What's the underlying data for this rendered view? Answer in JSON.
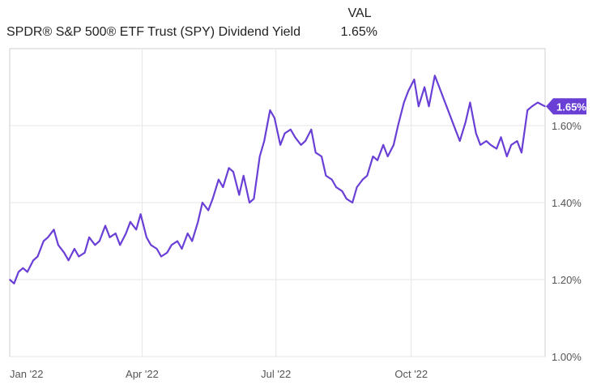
{
  "legend": {
    "val_header": "VAL",
    "series_name": "SPDR® S&P 500® ETF Trust (SPY) Dividend Yield",
    "series_value": "1.65%"
  },
  "colors": {
    "line": "#6a3fd6",
    "grid": "#e6e6e6",
    "frame": "#cfcfcf",
    "badge": "#6a3fd6"
  },
  "chart_data": {
    "type": "line",
    "title": "",
    "xlabel": "",
    "ylabel": "",
    "ylim": [
      1.0,
      1.8
    ],
    "y_ticks": [
      1.0,
      1.2,
      1.4,
      1.6
    ],
    "y_tick_labels": [
      "1.00%",
      "1.20%",
      "1.40%",
      "1.60%"
    ],
    "x_ticks": [
      "2022-01-01",
      "2022-04-01",
      "2022-07-01",
      "2022-10-01"
    ],
    "x_tick_labels": [
      "Jan '22",
      "Apr '22",
      "Jul '22",
      "Oct '22"
    ],
    "x_range": [
      "2022-01-01",
      "2022-12-31"
    ],
    "grid": true,
    "last_value_label": "1.65%",
    "series": [
      {
        "name": "SPDR® S&P 500® ETF Trust (SPY) Dividend Yield",
        "x": [
          "2022-01-01",
          "2022-01-04",
          "2022-01-07",
          "2022-01-10",
          "2022-01-13",
          "2022-01-17",
          "2022-01-20",
          "2022-01-24",
          "2022-01-27",
          "2022-01-31",
          "2022-02-03",
          "2022-02-07",
          "2022-02-10",
          "2022-02-14",
          "2022-02-17",
          "2022-02-21",
          "2022-02-24",
          "2022-02-28",
          "2022-03-03",
          "2022-03-07",
          "2022-03-10",
          "2022-03-14",
          "2022-03-17",
          "2022-03-21",
          "2022-03-24",
          "2022-03-28",
          "2022-03-31",
          "2022-04-04",
          "2022-04-07",
          "2022-04-11",
          "2022-04-14",
          "2022-04-18",
          "2022-04-21",
          "2022-04-25",
          "2022-04-28",
          "2022-05-02",
          "2022-05-05",
          "2022-05-09",
          "2022-05-12",
          "2022-05-16",
          "2022-05-19",
          "2022-05-23",
          "2022-05-26",
          "2022-05-30",
          "2022-06-02",
          "2022-06-06",
          "2022-06-09",
          "2022-06-13",
          "2022-06-16",
          "2022-06-20",
          "2022-06-23",
          "2022-06-27",
          "2022-06-30",
          "2022-07-04",
          "2022-07-07",
          "2022-07-11",
          "2022-07-14",
          "2022-07-18",
          "2022-07-21",
          "2022-07-25",
          "2022-07-28",
          "2022-08-01",
          "2022-08-04",
          "2022-08-08",
          "2022-08-11",
          "2022-08-15",
          "2022-08-18",
          "2022-08-22",
          "2022-08-25",
          "2022-08-29",
          "2022-09-01",
          "2022-09-05",
          "2022-09-08",
          "2022-09-12",
          "2022-09-15",
          "2022-09-19",
          "2022-09-22",
          "2022-09-26",
          "2022-09-29",
          "2022-10-03",
          "2022-10-06",
          "2022-10-10",
          "2022-10-13",
          "2022-10-17",
          "2022-10-20",
          "2022-10-24",
          "2022-10-27",
          "2022-10-31",
          "2022-11-03",
          "2022-11-07",
          "2022-11-10",
          "2022-11-14",
          "2022-11-17",
          "2022-11-21",
          "2022-11-24",
          "2022-11-28",
          "2022-12-01",
          "2022-12-05",
          "2022-12-08",
          "2022-12-12",
          "2022-12-15",
          "2022-12-19",
          "2022-12-22",
          "2022-12-26",
          "2022-12-31"
        ],
        "values": [
          1.2,
          1.19,
          1.22,
          1.23,
          1.22,
          1.25,
          1.26,
          1.3,
          1.31,
          1.33,
          1.29,
          1.27,
          1.25,
          1.28,
          1.26,
          1.27,
          1.31,
          1.29,
          1.3,
          1.34,
          1.31,
          1.32,
          1.29,
          1.32,
          1.35,
          1.33,
          1.37,
          1.31,
          1.29,
          1.28,
          1.26,
          1.27,
          1.29,
          1.3,
          1.28,
          1.32,
          1.3,
          1.35,
          1.4,
          1.38,
          1.41,
          1.46,
          1.44,
          1.49,
          1.48,
          1.42,
          1.47,
          1.4,
          1.41,
          1.52,
          1.56,
          1.64,
          1.62,
          1.55,
          1.58,
          1.59,
          1.57,
          1.55,
          1.56,
          1.59,
          1.53,
          1.52,
          1.47,
          1.46,
          1.44,
          1.43,
          1.41,
          1.4,
          1.44,
          1.46,
          1.47,
          1.52,
          1.51,
          1.55,
          1.52,
          1.55,
          1.6,
          1.66,
          1.69,
          1.72,
          1.65,
          1.7,
          1.65,
          1.73,
          1.7,
          1.66,
          1.63,
          1.59,
          1.56,
          1.61,
          1.66,
          1.58,
          1.55,
          1.56,
          1.55,
          1.54,
          1.57,
          1.52,
          1.55,
          1.56,
          1.53,
          1.64,
          1.65,
          1.66,
          1.65
        ]
      }
    ]
  }
}
